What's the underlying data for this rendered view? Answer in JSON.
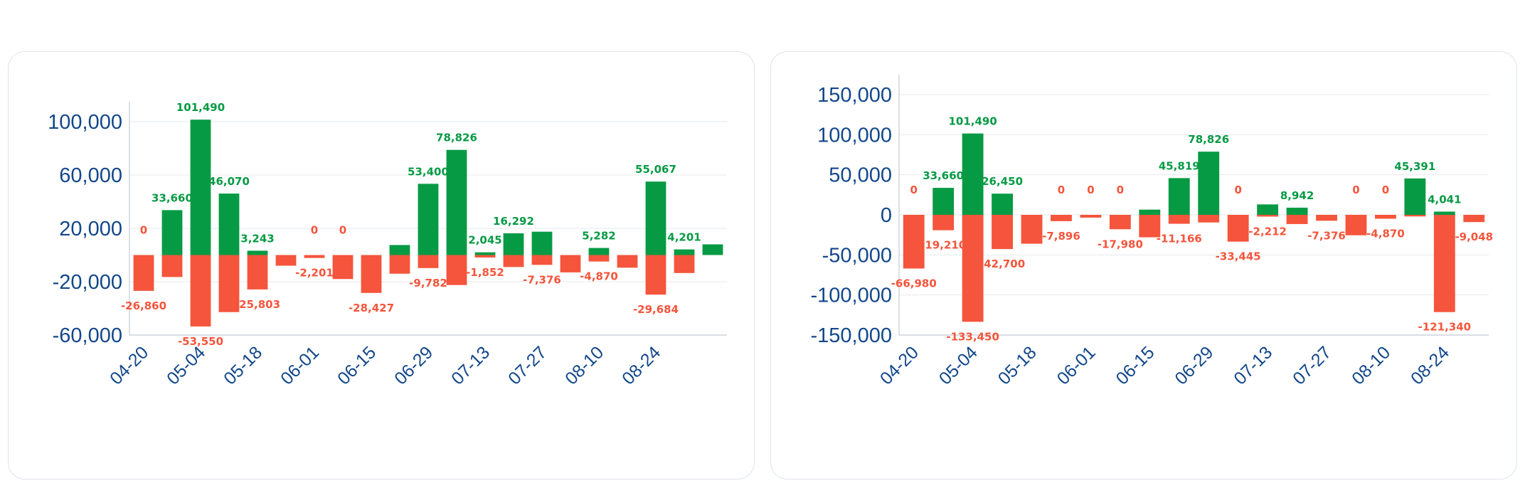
{
  "colors": {
    "positive": "#079a44",
    "negative": "#f4553c",
    "axis_text": "#12478a",
    "grid": "#e6eaee",
    "axis": "#c4cbd3"
  },
  "chart_data": [
    {
      "type": "bar",
      "title": "",
      "xlabel": "",
      "ylabel": "",
      "ylim": [
        -60000,
        100000
      ],
      "yticks": [
        100000,
        60000,
        20000,
        -20000,
        -60000
      ],
      "ytick_labels": [
        "100,000",
        "60,000",
        "20,000",
        "-20,000",
        "-60,000"
      ],
      "xtick_labels": [
        "04-20",
        "05-04",
        "05-18",
        "06-01",
        "06-15",
        "06-29",
        "07-13",
        "07-27",
        "08-10",
        "08-24"
      ],
      "grid": true,
      "legend": "none",
      "positive_values": [
        0,
        33660,
        101490,
        46070,
        3243,
        0,
        0,
        0,
        0,
        7500,
        53400,
        78826,
        2045,
        16292,
        17500,
        0,
        5282,
        0,
        55067,
        4201,
        8000
      ],
      "positive_labels": [
        "0",
        "33,660",
        "101,490",
        "46,070",
        "3,243",
        "",
        "0",
        "0",
        "",
        "",
        "53,400",
        "78,826",
        "2,045",
        "16,292",
        "",
        "",
        "5,282",
        "",
        "55,067",
        "4,201",
        ""
      ],
      "negative_values": [
        -26860,
        -16500,
        -53550,
        -42800,
        -25803,
        -8000,
        -2201,
        -18000,
        -28427,
        -14000,
        -9782,
        -22500,
        -1852,
        -9000,
        -7376,
        -13000,
        -4870,
        -9500,
        -29684,
        -13500,
        0
      ],
      "negative_labels": [
        "-26,860",
        "",
        "-53,550",
        "",
        "-25,803",
        "",
        "-2,201",
        "",
        "-28,427",
        "",
        "-9,782",
        "",
        "-1,852",
        "",
        "-7,376",
        "",
        "-4,870",
        "",
        "-29,684",
        "",
        ""
      ]
    },
    {
      "type": "bar",
      "title": "",
      "xlabel": "",
      "ylabel": "",
      "ylim": [
        -150000,
        150000
      ],
      "yticks": [
        150000,
        100000,
        50000,
        0,
        -50000,
        -100000,
        -150000
      ],
      "ytick_labels": [
        "150,000",
        "100,000",
        "50,000",
        "0",
        "-50,000",
        "-100,000",
        "-150,000"
      ],
      "xtick_labels": [
        "04-20",
        "05-04",
        "05-18",
        "06-01",
        "06-15",
        "06-29",
        "07-13",
        "07-27",
        "08-10",
        "08-24"
      ],
      "grid": true,
      "legend": "none",
      "positive_values": [
        0,
        33660,
        101490,
        26450,
        0,
        0,
        0,
        0,
        6500,
        45819,
        78826,
        0,
        13000,
        8942,
        0,
        0,
        0,
        45391,
        4041,
        0
      ],
      "positive_labels": [
        "0",
        "33,660",
        "101,490",
        "26,450",
        "",
        "0",
        "0",
        "0",
        "",
        "45,819",
        "78,826",
        "0",
        "",
        "8,942",
        "",
        "0",
        "0",
        "45,391",
        "4,041",
        ""
      ],
      "negative_values": [
        -66980,
        -19210,
        -133450,
        -42700,
        -36000,
        -7896,
        -3500,
        -17980,
        -28000,
        -11166,
        -9500,
        -33445,
        -2212,
        -11500,
        -7376,
        -25500,
        -4870,
        -2000,
        -121340,
        -9048
      ],
      "negative_labels": [
        "-66,980",
        "-19,210",
        "-133,450",
        "-42,700",
        "",
        "-7,896",
        "",
        "-17,980",
        "",
        "-11,166",
        "",
        "-33,445",
        "-2,212",
        "",
        "-7,376",
        "",
        "-4,870",
        "",
        "-121,340",
        "-9,048"
      ]
    }
  ]
}
